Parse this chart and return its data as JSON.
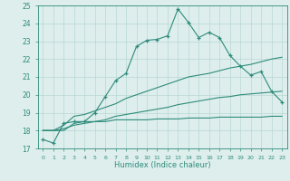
{
  "xlabel": "Humidex (Indice chaleur)",
  "x_values": [
    0,
    1,
    2,
    3,
    4,
    5,
    6,
    7,
    8,
    9,
    10,
    11,
    12,
    13,
    14,
    15,
    16,
    17,
    18,
    19,
    20,
    21,
    22,
    23
  ],
  "line_main_y": [
    17.5,
    17.3,
    18.4,
    18.5,
    18.5,
    19.0,
    19.9,
    20.8,
    21.2,
    22.7,
    23.05,
    23.1,
    23.3,
    24.8,
    24.05,
    23.2,
    23.5,
    23.2,
    22.2,
    21.6,
    21.1,
    21.3,
    20.2,
    19.6
  ],
  "line_steep_y": [
    18.0,
    18.0,
    18.3,
    18.8,
    18.9,
    19.1,
    19.3,
    19.5,
    19.8,
    20.0,
    20.2,
    20.4,
    20.6,
    20.8,
    21.0,
    21.1,
    21.2,
    21.35,
    21.5,
    21.6,
    21.7,
    21.85,
    22.0,
    22.1
  ],
  "line_mid_y": [
    18.0,
    18.0,
    18.1,
    18.3,
    18.4,
    18.5,
    18.6,
    18.8,
    18.9,
    19.0,
    19.1,
    19.2,
    19.3,
    19.45,
    19.55,
    19.65,
    19.75,
    19.85,
    19.9,
    20.0,
    20.05,
    20.1,
    20.15,
    20.2
  ],
  "line_flat_y": [
    18.0,
    18.0,
    18.0,
    18.4,
    18.5,
    18.5,
    18.5,
    18.6,
    18.6,
    18.6,
    18.6,
    18.65,
    18.65,
    18.65,
    18.7,
    18.7,
    18.7,
    18.75,
    18.75,
    18.75,
    18.75,
    18.75,
    18.8,
    18.8
  ],
  "color": "#2e8b7a",
  "bg_color": "#ddeeed",
  "grid_color": "#b8d8d4",
  "ylim": [
    17,
    25
  ],
  "yticks": [
    17,
    18,
    19,
    20,
    21,
    22,
    23,
    24,
    25
  ],
  "xticks": [
    0,
    1,
    2,
    3,
    4,
    5,
    6,
    7,
    8,
    9,
    10,
    11,
    12,
    13,
    14,
    15,
    16,
    17,
    18,
    19,
    20,
    21,
    22,
    23
  ],
  "xlim": [
    -0.5,
    23.5
  ]
}
